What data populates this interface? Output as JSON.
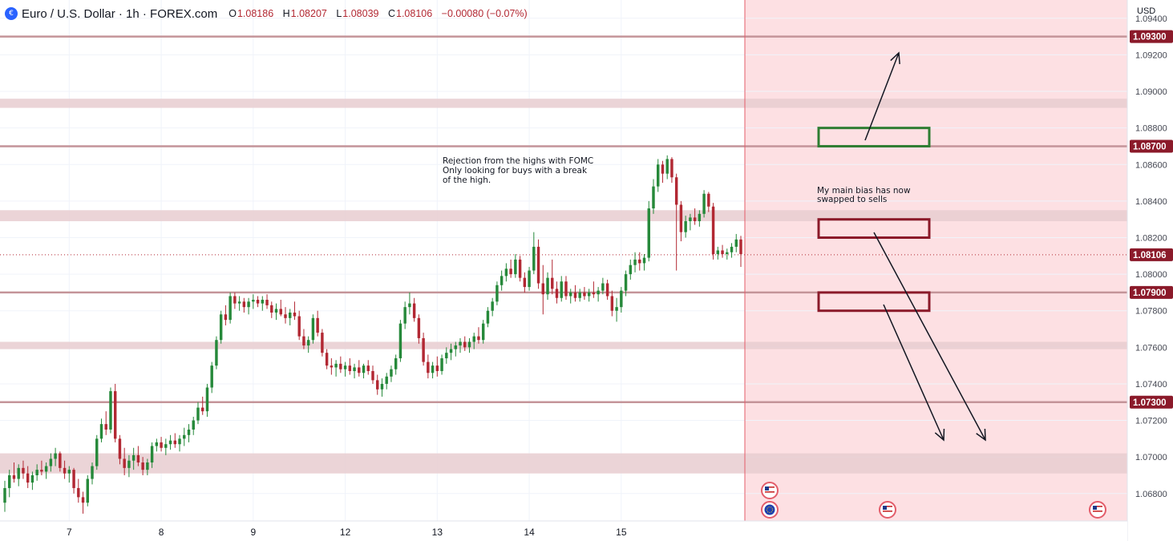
{
  "header": {
    "symbol": "Euro / U.S. Dollar · 1h · FOREX.com",
    "open_label": "O",
    "open": "1.08186",
    "high_label": "H",
    "high": "1.08207",
    "low_label": "L",
    "low": "1.08039",
    "close_label": "C",
    "close": "1.08106",
    "change": "−0.00080 (−0.07%)"
  },
  "chart_data": {
    "type": "candlestick",
    "currency": "USD",
    "y_range": [
      1.0665,
      1.095
    ],
    "x_ticks": [
      "7",
      "8",
      "9",
      "12",
      "13",
      "14",
      "15"
    ],
    "y_ticks": [
      "1.09400",
      "1.09200",
      "1.09000",
      "1.08800",
      "1.08600",
      "1.08400",
      "1.08200",
      "1.08000",
      "1.07800",
      "1.07600",
      "1.07400",
      "1.07200",
      "1.07000",
      "1.06800"
    ],
    "last_price": "1.08106",
    "level_lines": [
      {
        "label": "1.09300",
        "value": 1.093
      },
      {
        "label": "1.08700",
        "value": 1.087
      },
      {
        "label": "1.07900",
        "value": 1.079
      },
      {
        "label": "1.07300",
        "value": 1.073
      }
    ],
    "zones": [
      {
        "low": 1.0891,
        "high": 1.0896
      },
      {
        "low": 1.0829,
        "high": 1.0835
      },
      {
        "low": 1.0759,
        "high": 1.0763
      },
      {
        "low": 1.0691,
        "high": 1.0702
      }
    ],
    "annotations": [
      {
        "lines": [
          "Rejection from the highs with FOMC",
          "Only looking for buys with a break",
          "of the high."
        ]
      },
      {
        "lines": [
          "My main bias has now",
          "swapped to sells"
        ]
      }
    ],
    "colors": {
      "up": "#26893a",
      "down": "#b22833",
      "level": "#c49499",
      "zone": "#e8cdd0",
      "future": "#fde0e3",
      "box_buy": "#2e7d32",
      "box_sell": "#8b1a2a"
    },
    "candles": [
      [
        1.0675,
        1.0687,
        1.067,
        1.0683
      ],
      [
        1.0683,
        1.0693,
        1.0678,
        1.069
      ],
      [
        1.069,
        1.0697,
        1.0686,
        1.0688
      ],
      [
        1.0688,
        1.0696,
        1.0684,
        1.0694
      ],
      [
        1.0694,
        1.0698,
        1.0688,
        1.0691
      ],
      [
        1.0691,
        1.0695,
        1.0683,
        1.0686
      ],
      [
        1.0686,
        1.0692,
        1.0682,
        1.069
      ],
      [
        1.069,
        1.0696,
        1.0687,
        1.0693
      ],
      [
        1.0693,
        1.0698,
        1.069,
        1.0692
      ],
      [
        1.0692,
        1.0697,
        1.0688,
        1.0695
      ],
      [
        1.0695,
        1.0702,
        1.0692,
        1.0699
      ],
      [
        1.0699,
        1.0705,
        1.0695,
        1.0702
      ],
      [
        1.0702,
        1.0703,
        1.0692,
        1.0694
      ],
      [
        1.0694,
        1.0698,
        1.0688,
        1.0691
      ],
      [
        1.0691,
        1.0695,
        1.0686,
        1.0693
      ],
      [
        1.0693,
        1.0694,
        1.068,
        1.0683
      ],
      [
        1.0683,
        1.0688,
        1.0675,
        1.0678
      ],
      [
        1.0678,
        1.0681,
        1.0669,
        1.0675
      ],
      [
        1.0675,
        1.069,
        1.0673,
        1.0688
      ],
      [
        1.0688,
        1.0697,
        1.0685,
        1.0695
      ],
      [
        1.0695,
        1.0712,
        1.0693,
        1.071
      ],
      [
        1.071,
        1.0721,
        1.0708,
        1.0718
      ],
      [
        1.0718,
        1.0725,
        1.0712,
        1.0715
      ],
      [
        1.0715,
        1.0738,
        1.0713,
        1.0736
      ],
      [
        1.0736,
        1.074,
        1.0708,
        1.071
      ],
      [
        1.071,
        1.0712,
        1.0696,
        1.0699
      ],
      [
        1.0699,
        1.0705,
        1.069,
        1.0694
      ],
      [
        1.0694,
        1.0701,
        1.0689,
        1.0698
      ],
      [
        1.0698,
        1.0705,
        1.0693,
        1.0701
      ],
      [
        1.0701,
        1.0706,
        1.0695,
        1.0697
      ],
      [
        1.0697,
        1.07,
        1.069,
        1.0693
      ],
      [
        1.0693,
        1.0699,
        1.069,
        1.0697
      ],
      [
        1.0697,
        1.0708,
        1.0694,
        1.0706
      ],
      [
        1.0706,
        1.071,
        1.0703,
        1.0708
      ],
      [
        1.0708,
        1.0711,
        1.0703,
        1.0705
      ],
      [
        1.0705,
        1.071,
        1.0701,
        1.0707
      ],
      [
        1.0707,
        1.0712,
        1.0704,
        1.0709
      ],
      [
        1.0709,
        1.0713,
        1.0705,
        1.0707
      ],
      [
        1.0707,
        1.0712,
        1.0703,
        1.071
      ],
      [
        1.071,
        1.0716,
        1.0706,
        1.0712
      ],
      [
        1.0712,
        1.0718,
        1.0708,
        1.0715
      ],
      [
        1.0715,
        1.0722,
        1.0712,
        1.072
      ],
      [
        1.072,
        1.073,
        1.0718,
        1.0727
      ],
      [
        1.0727,
        1.0733,
        1.0723,
        1.0725
      ],
      [
        1.0725,
        1.074,
        1.0722,
        1.0738
      ],
      [
        1.0738,
        1.0752,
        1.0735,
        1.075
      ],
      [
        1.075,
        1.0766,
        1.0748,
        1.0764
      ],
      [
        1.0764,
        1.078,
        1.0762,
        1.0778
      ],
      [
        1.0778,
        1.0783,
        1.0772,
        1.0775
      ],
      [
        1.0775,
        1.079,
        1.0773,
        1.0788
      ],
      [
        1.0788,
        1.079,
        1.0781,
        1.0784
      ],
      [
        1.0784,
        1.0788,
        1.078,
        1.0785
      ],
      [
        1.0785,
        1.0787,
        1.0779,
        1.0782
      ],
      [
        1.0782,
        1.0787,
        1.0778,
        1.0785
      ],
      [
        1.0785,
        1.0789,
        1.0781,
        1.0786
      ],
      [
        1.0786,
        1.0788,
        1.0782,
        1.0784
      ],
      [
        1.0784,
        1.0788,
        1.078,
        1.0786
      ],
      [
        1.0786,
        1.0789,
        1.0781,
        1.0783
      ],
      [
        1.0783,
        1.0785,
        1.0776,
        1.0779
      ],
      [
        1.0779,
        1.0784,
        1.0775,
        1.0781
      ],
      [
        1.0781,
        1.0786,
        1.0777,
        1.0778
      ],
      [
        1.0778,
        1.0782,
        1.0773,
        1.0776
      ],
      [
        1.0776,
        1.0781,
        1.0772,
        1.0779
      ],
      [
        1.0779,
        1.0785,
        1.0775,
        1.0777
      ],
      [
        1.0777,
        1.078,
        1.0764,
        1.0766
      ],
      [
        1.0766,
        1.077,
        1.0759,
        1.0761
      ],
      [
        1.0761,
        1.0766,
        1.0757,
        1.0764
      ],
      [
        1.0764,
        1.0778,
        1.0762,
        1.0776
      ],
      [
        1.0776,
        1.078,
        1.0766,
        1.0768
      ],
      [
        1.0768,
        1.077,
        1.0755,
        1.0757
      ],
      [
        1.0757,
        1.0759,
        1.0748,
        1.075
      ],
      [
        1.075,
        1.0754,
        1.0745,
        1.0749
      ],
      [
        1.0749,
        1.0753,
        1.0744,
        1.0751
      ],
      [
        1.0751,
        1.0755,
        1.0746,
        1.0748
      ],
      [
        1.0748,
        1.0752,
        1.0744,
        1.075
      ],
      [
        1.075,
        1.0754,
        1.0745,
        1.0747
      ],
      [
        1.0747,
        1.0751,
        1.0743,
        1.0749
      ],
      [
        1.0749,
        1.0753,
        1.0744,
        1.0746
      ],
      [
        1.0746,
        1.0751,
        1.0743,
        1.075
      ],
      [
        1.075,
        1.0753,
        1.0745,
        1.0747
      ],
      [
        1.0747,
        1.075,
        1.074,
        1.0742
      ],
      [
        1.0742,
        1.0745,
        1.0734,
        1.0737
      ],
      [
        1.0737,
        1.0743,
        1.0733,
        1.074
      ],
      [
        1.074,
        1.0746,
        1.0737,
        1.0744
      ],
      [
        1.0744,
        1.075,
        1.0741,
        1.0748
      ],
      [
        1.0748,
        1.0756,
        1.0745,
        1.0754
      ],
      [
        1.0754,
        1.0775,
        1.0752,
        1.0773
      ],
      [
        1.0773,
        1.0785,
        1.077,
        1.0782
      ],
      [
        1.0782,
        1.079,
        1.0778,
        1.0784
      ],
      [
        1.0784,
        1.0787,
        1.0774,
        1.0776
      ],
      [
        1.0776,
        1.0778,
        1.0762,
        1.0765
      ],
      [
        1.0765,
        1.0768,
        1.075,
        1.0752
      ],
      [
        1.0752,
        1.0756,
        1.0743,
        1.0746
      ],
      [
        1.0746,
        1.0752,
        1.0743,
        1.075
      ],
      [
        1.075,
        1.0755,
        1.0744,
        1.0747
      ],
      [
        1.0747,
        1.0756,
        1.0745,
        1.0754
      ],
      [
        1.0754,
        1.076,
        1.0751,
        1.0757
      ],
      [
        1.0757,
        1.0762,
        1.0753,
        1.0759
      ],
      [
        1.0759,
        1.0763,
        1.0755,
        1.0761
      ],
      [
        1.0761,
        1.0765,
        1.0757,
        1.0763
      ],
      [
        1.0763,
        1.0766,
        1.0758,
        1.076
      ],
      [
        1.076,
        1.0765,
        1.0757,
        1.0763
      ],
      [
        1.0763,
        1.0768,
        1.0759,
        1.0766
      ],
      [
        1.0766,
        1.0771,
        1.0762,
        1.0764
      ],
      [
        1.0764,
        1.0775,
        1.0762,
        1.0773
      ],
      [
        1.0773,
        1.0782,
        1.0771,
        1.078
      ],
      [
        1.078,
        1.0787,
        1.0777,
        1.0785
      ],
      [
        1.0785,
        1.0796,
        1.0783,
        1.0794
      ],
      [
        1.0794,
        1.0802,
        1.0791,
        1.0799
      ],
      [
        1.0799,
        1.0806,
        1.0796,
        1.0803
      ],
      [
        1.0803,
        1.0808,
        1.0798,
        1.08
      ],
      [
        1.08,
        1.0811,
        1.0798,
        1.0808
      ],
      [
        1.0808,
        1.081,
        1.0796,
        1.0798
      ],
      [
        1.0798,
        1.0801,
        1.079,
        1.0793
      ],
      [
        1.0793,
        1.0804,
        1.0791,
        1.0802
      ],
      [
        1.0802,
        1.0823,
        1.08,
        1.0815
      ],
      [
        1.0815,
        1.0819,
        1.0792,
        1.0795
      ],
      [
        1.0795,
        1.0805,
        1.0778,
        1.0789
      ],
      [
        1.0789,
        1.0801,
        1.0786,
        1.0798
      ],
      [
        1.0798,
        1.0808,
        1.0789,
        1.0792
      ],
      [
        1.0792,
        1.0796,
        1.0784,
        1.0787
      ],
      [
        1.0787,
        1.0799,
        1.0785,
        1.0796
      ],
      [
        1.0796,
        1.0799,
        1.0786,
        1.0788
      ],
      [
        1.0788,
        1.0792,
        1.0784,
        1.079
      ],
      [
        1.079,
        1.0794,
        1.0785,
        1.0787
      ],
      [
        1.0787,
        1.0792,
        1.0785,
        1.079
      ],
      [
        1.079,
        1.0793,
        1.0786,
        1.0788
      ],
      [
        1.0788,
        1.0792,
        1.0785,
        1.079
      ],
      [
        1.079,
        1.0796,
        1.0787,
        1.0789
      ],
      [
        1.0789,
        1.0793,
        1.0785,
        1.0791
      ],
      [
        1.0791,
        1.0798,
        1.0789,
        1.0795
      ],
      [
        1.0795,
        1.0797,
        1.0786,
        1.0788
      ],
      [
        1.0788,
        1.0791,
        1.0777,
        1.078
      ],
      [
        1.078,
        1.0787,
        1.0774,
        1.0782
      ],
      [
        1.0782,
        1.0793,
        1.0779,
        1.0791
      ],
      [
        1.0791,
        1.0802,
        1.0788,
        1.08
      ],
      [
        1.08,
        1.0808,
        1.0797,
        1.0805
      ],
      [
        1.0805,
        1.0812,
        1.0801,
        1.0808
      ],
      [
        1.0808,
        1.0812,
        1.0802,
        1.0806
      ],
      [
        1.0806,
        1.0811,
        1.0802,
        1.0809
      ],
      [
        1.0809,
        1.084,
        1.0807,
        1.0836
      ],
      [
        1.0836,
        1.0852,
        1.0833,
        1.0848
      ],
      [
        1.0848,
        1.0863,
        1.0845,
        1.086
      ],
      [
        1.086,
        1.0862,
        1.085,
        1.0855
      ],
      [
        1.0855,
        1.0865,
        1.0852,
        1.0863
      ],
      [
        1.0863,
        1.0864,
        1.085,
        1.0853
      ],
      [
        1.0853,
        1.0855,
        1.0802,
        1.0838
      ],
      [
        1.0838,
        1.084,
        1.0818,
        1.0823
      ],
      [
        1.0823,
        1.0832,
        1.082,
        1.0829
      ],
      [
        1.0829,
        1.0833,
        1.0824,
        1.0831
      ],
      [
        1.0831,
        1.0836,
        1.0827,
        1.0829
      ],
      [
        1.0829,
        1.0835,
        1.0826,
        1.0833
      ],
      [
        1.0833,
        1.0846,
        1.0831,
        1.0844
      ],
      [
        1.0844,
        1.0845,
        1.0834,
        1.0837
      ],
      [
        1.0837,
        1.0839,
        1.0808,
        1.0811
      ],
      [
        1.0811,
        1.0815,
        1.0808,
        1.0813
      ],
      [
        1.0813,
        1.0816,
        1.0809,
        1.0811
      ],
      [
        1.0811,
        1.0814,
        1.0808,
        1.0812
      ],
      [
        1.0812,
        1.0817,
        1.0809,
        1.0815
      ],
      [
        1.0815,
        1.0822,
        1.0812,
        1.0819
      ],
      [
        1.0819,
        1.0821,
        1.0804,
        1.0811
      ]
    ]
  }
}
